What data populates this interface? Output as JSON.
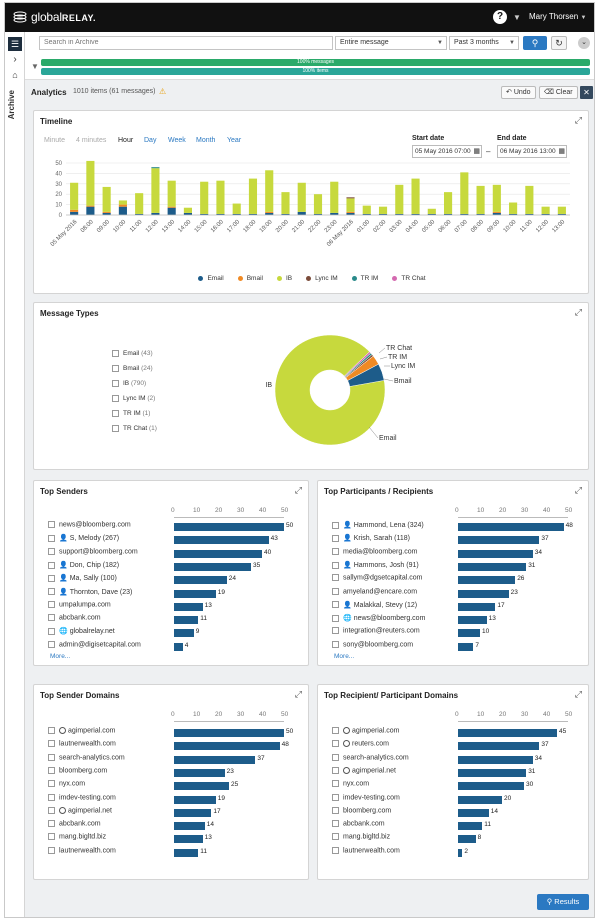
{
  "app": {
    "logo_text": "global",
    "logo_bold": "RELAY."
  },
  "header": {
    "help_icon": "question-circle-icon",
    "user_name": "Mary Thorsen"
  },
  "sidebar": {
    "archive_label": "Archive"
  },
  "search": {
    "placeholder": "Search in Archive",
    "scope": "Entire message",
    "range": "Past 3 months"
  },
  "filters": {
    "bar1": "100% messages",
    "bar2": "100% items"
  },
  "analytics": {
    "title": "Analytics",
    "count": "1010 items (61 messages)",
    "undo": "Undo",
    "clear": "Clear"
  },
  "timeline": {
    "title": "Timeline",
    "granularities": [
      "Minute",
      "4 minutes",
      "Hour",
      "Day",
      "Week",
      "Month",
      "Year"
    ],
    "start_label": "Start date",
    "start_value": "05 May 2016 07:00",
    "end_label": "End date",
    "end_value": "06 May 2016 13:00",
    "legend": [
      {
        "name": "Email",
        "color": "#1d5c8a"
      },
      {
        "name": "Bmail",
        "color": "#f08a24"
      },
      {
        "name": "IB",
        "color": "#c7d93d"
      },
      {
        "name": "Lync IM",
        "color": "#7b4b3a"
      },
      {
        "name": "TR IM",
        "color": "#2a8a8a"
      },
      {
        "name": "TR Chat",
        "color": "#d46ab0"
      }
    ]
  },
  "chart_data": [
    {
      "type": "bar",
      "title": "Timeline",
      "ylim": [
        0,
        50
      ],
      "yticks": [
        0,
        10,
        20,
        30,
        40,
        50
      ],
      "categories": [
        "05 May 2016",
        "08:00",
        "09:00",
        "10:00",
        "11:00",
        "12:00",
        "13:00",
        "14:00",
        "15:00",
        "16:00",
        "17:00",
        "18:00",
        "19:00",
        "20:00",
        "21:00",
        "22:00",
        "23:00",
        "06 May 2016",
        "01:00",
        "02:00",
        "03:00",
        "04:00",
        "05:00",
        "06:00",
        "07:00",
        "08:00",
        "09:00",
        "10:00",
        "11:00",
        "12:00",
        "13:00"
      ],
      "series": [
        {
          "name": "Email",
          "values": [
            3,
            8,
            2,
            8,
            1,
            2,
            7,
            2,
            1,
            1,
            1,
            1,
            2,
            1,
            3,
            1,
            2,
            2,
            1,
            1,
            1,
            1,
            1,
            1,
            1,
            1,
            2,
            1,
            1,
            1,
            1
          ]
        },
        {
          "name": "Bmail",
          "values": [
            2,
            1,
            1,
            2,
            0,
            0,
            1,
            0,
            0,
            0,
            0,
            0,
            1,
            0,
            0,
            0,
            0,
            1,
            0,
            0,
            0,
            0,
            0,
            0,
            0,
            0,
            1,
            0,
            0,
            0,
            0
          ]
        },
        {
          "name": "IB",
          "values": [
            26,
            43,
            24,
            4,
            20,
            43,
            25,
            5,
            31,
            32,
            10,
            34,
            40,
            21,
            28,
            19,
            30,
            13,
            8,
            7,
            28,
            34,
            5,
            21,
            40,
            27,
            26,
            11,
            27,
            7,
            7
          ]
        },
        {
          "name": "Lync IM",
          "values": [
            0,
            0,
            0,
            0,
            0,
            0,
            0,
            0,
            0,
            0,
            0,
            0,
            0,
            0,
            0,
            0,
            0,
            1,
            0,
            0,
            0,
            0,
            0,
            0,
            0,
            0,
            0,
            0,
            0,
            0,
            0
          ]
        },
        {
          "name": "TR IM",
          "values": [
            0,
            0,
            0,
            0,
            0,
            1,
            0,
            0,
            0,
            0,
            0,
            0,
            0,
            0,
            0,
            0,
            0,
            0,
            0,
            0,
            0,
            0,
            0,
            0,
            0,
            0,
            0,
            0,
            0,
            0,
            0
          ]
        },
        {
          "name": "TR Chat",
          "values": [
            0,
            0,
            0,
            0,
            0,
            0,
            0,
            0,
            0,
            0,
            0,
            0,
            0,
            0,
            0,
            0,
            0,
            0,
            0,
            0,
            0,
            0,
            0,
            0,
            0,
            0,
            0,
            0,
            0,
            0,
            0
          ]
        }
      ]
    },
    {
      "type": "pie",
      "title": "Message Types",
      "categories": [
        "IB",
        "Email",
        "Bmail",
        "Lync IM",
        "TR IM",
        "TR Chat"
      ],
      "values": [
        790,
        43,
        24,
        2,
        1,
        1
      ]
    },
    {
      "type": "bar",
      "title": "Top Senders",
      "xticks": [
        0,
        10,
        20,
        30,
        40,
        50
      ],
      "categories": [
        "news@bloomberg.com",
        "S, Melody (267)",
        "support@bloomberg.com",
        "Don, Chip (182)",
        "Ma, Sally (100)",
        "Thornton, Dave (23)",
        "umpalumpa.com",
        "abcbank.com",
        "globalrelay.net",
        "admin@digisetcapital.com"
      ],
      "values": [
        50,
        43,
        40,
        35,
        24,
        19,
        13,
        11,
        9,
        4
      ]
    },
    {
      "type": "bar",
      "title": "Top Participants / Recipients",
      "xticks": [
        0,
        10,
        20,
        30,
        40,
        50
      ],
      "categories": [
        "Hammond, Lena (324)",
        "Krish, Sarah (118)",
        "media@bloomberg.com",
        "Hammons, Josh (91)",
        "sallym@dgsetcapital.com",
        "amyeland@encare.com",
        "Malakkal, Stevy (12)",
        "news@bloomberg.com",
        "integration@reuters.com",
        "sony@bloomberg.com"
      ],
      "values": [
        48,
        37,
        34,
        31,
        26,
        23,
        17,
        13,
        10,
        7
      ]
    },
    {
      "type": "bar",
      "title": "Top Sender Domains",
      "xticks": [
        0,
        10,
        20,
        30,
        40,
        50
      ],
      "categories": [
        "agimperial.com",
        "lautnerwealth.com",
        "search-analytics.com",
        "bloomberg.com",
        "nyx.com",
        "imdev-testing.com",
        "agimperial.net",
        "abcbank.com",
        "mang.bigltd.biz",
        "lautnerwealth.com"
      ],
      "values": [
        50,
        48,
        37,
        23,
        25,
        19,
        17,
        14,
        13,
        11
      ]
    },
    {
      "type": "bar",
      "title": "Top Recipient/ Participant Domains",
      "xticks": [
        0,
        10,
        20,
        30,
        40,
        50
      ],
      "categories": [
        "agimperial.com",
        "reuters.com",
        "search-analytics.com",
        "agimperial.net",
        "nyx.com",
        "imdev-testing.com",
        "bloomberg.com",
        "abcbank.com",
        "mang.bigltd.biz",
        "lautnerwealth.com"
      ],
      "values": [
        45,
        37,
        34,
        31,
        30,
        20,
        14,
        11,
        8,
        2
      ]
    }
  ],
  "message_types": {
    "title": "Message Types",
    "items": [
      {
        "label": "Email",
        "count": "(43)"
      },
      {
        "label": "Bmail",
        "count": "(24)"
      },
      {
        "label": "IB",
        "count": "(790)"
      },
      {
        "label": "Lync IM",
        "count": "(2)"
      },
      {
        "label": "TR IM",
        "count": "(1)"
      },
      {
        "label": "TR Chat",
        "count": "(1)"
      }
    ],
    "slice_labels": [
      "IB",
      "TR Chat",
      "TR IM",
      "Lync IM",
      "Bmail",
      "Email"
    ],
    "colors": [
      "#c7d93d",
      "#1d5c8a",
      "#f08a24",
      "#7b4b3a",
      "#2a8a8a",
      "#d46ab0"
    ]
  },
  "panels": {
    "senders": {
      "title": "Top Senders",
      "more": "More...",
      "icons": [
        "",
        "person",
        "",
        "person",
        "person",
        "person",
        "",
        "",
        "globe-chat",
        ""
      ]
    },
    "participants": {
      "title": "Top Participants / Recipients",
      "more": "More...",
      "icons": [
        "person",
        "person",
        "",
        "person",
        "",
        "",
        "person",
        "globe-chat",
        "",
        ""
      ]
    },
    "sender_domains": {
      "title": "Top Sender Domains",
      "icons": [
        "globe",
        "",
        "",
        "",
        "",
        "",
        "globe",
        "",
        "",
        ""
      ]
    },
    "recipient_domains": {
      "title": "Top Recipient/ Participant Domains",
      "icons": [
        "globe",
        "globe",
        "",
        "globe",
        "",
        "",
        "",
        "",
        "",
        ""
      ]
    }
  },
  "footer": {
    "results": "Results"
  }
}
